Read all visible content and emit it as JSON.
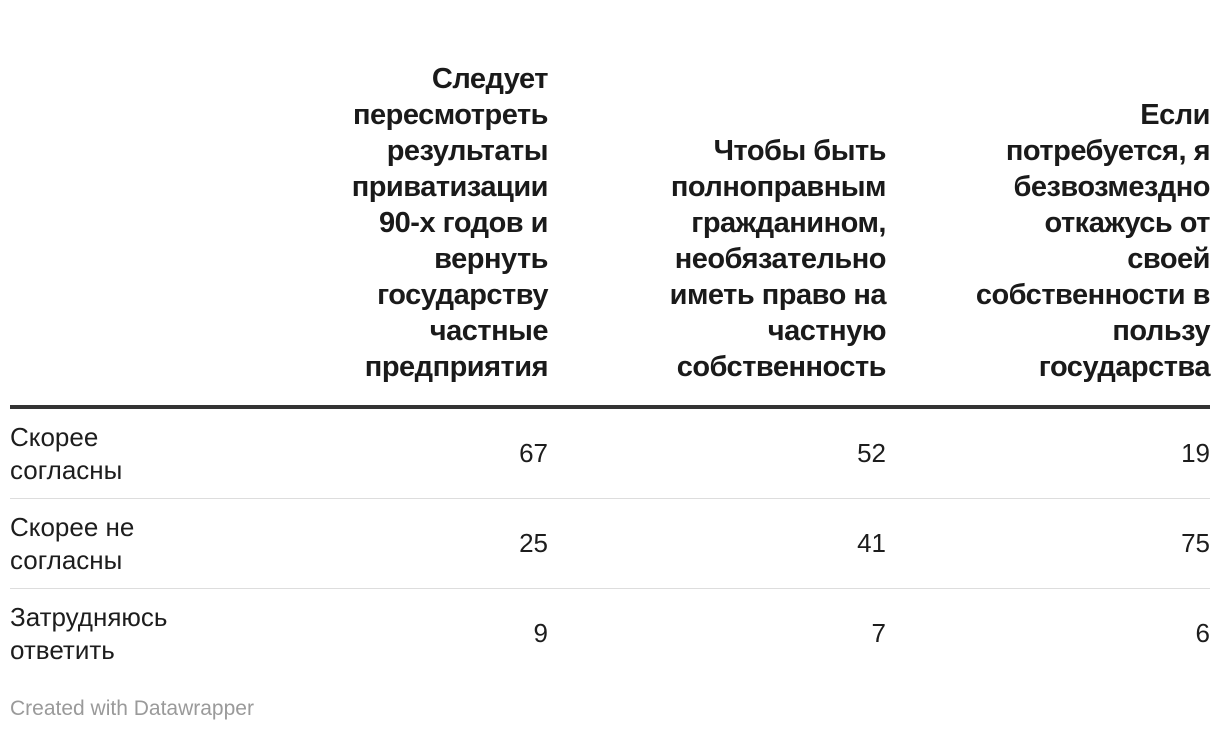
{
  "chart_data": {
    "type": "table",
    "columns": [
      "",
      "Следует пересмотреть результаты приватизации 90-х годов и вернуть государству частные предприятия",
      "Чтобы быть полноправным гражданином, необязательно иметь право на частную собственность",
      "Если потребуется, я безвозмездно откажусь от своей собственности в пользу государства"
    ],
    "rows": [
      {
        "label": "Скорее согласны",
        "values": [
          67,
          52,
          19
        ]
      },
      {
        "label": "Скорее не согласны",
        "values": [
          25,
          41,
          75
        ]
      },
      {
        "label": "Затрудняюсь ответить",
        "values": [
          9,
          7,
          6
        ]
      }
    ]
  },
  "footer": {
    "credit": "Created with Datawrapper"
  }
}
